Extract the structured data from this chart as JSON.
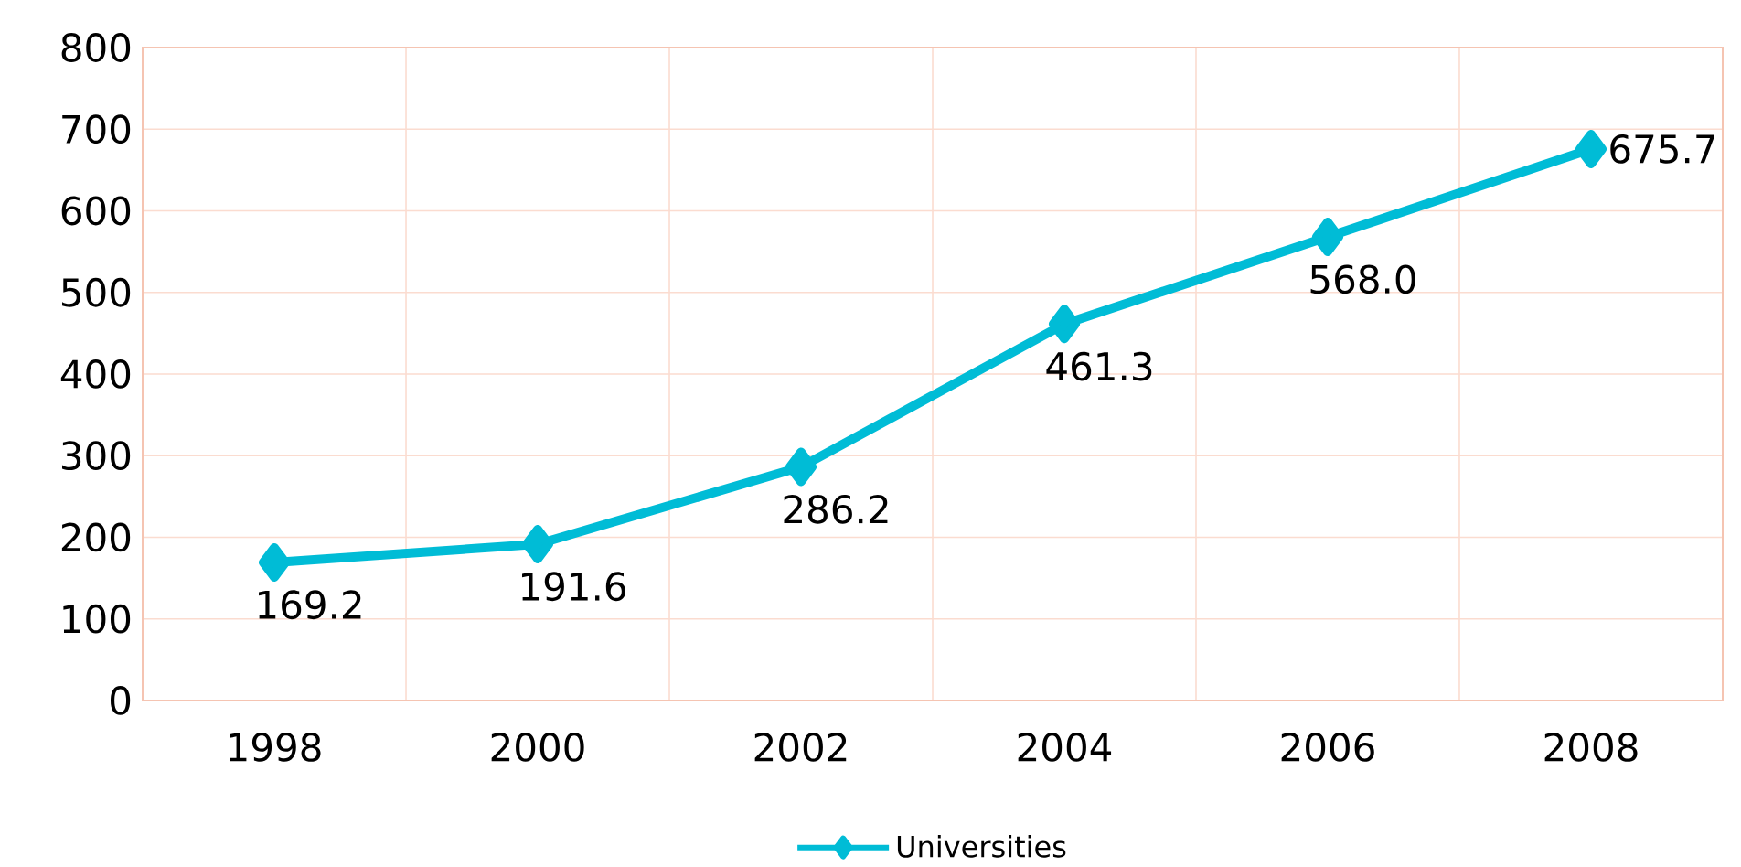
{
  "chart_data": {
    "type": "line",
    "categories": [
      "1998",
      "2000",
      "2002",
      "2004",
      "2006",
      "2008"
    ],
    "series": [
      {
        "name": "Universities",
        "color": "#00bcd6",
        "values": [
          169.2,
          191.6,
          286.2,
          461.3,
          568.0,
          675.7
        ],
        "value_labels": [
          "169.2",
          "191.6",
          "286.2",
          "461.3",
          "568.0",
          "675.7"
        ]
      }
    ],
    "ylim": [
      0,
      800
    ],
    "yticks": [
      0,
      100,
      200,
      300,
      400,
      500,
      600,
      700,
      800
    ],
    "grid": true,
    "legend": "bottom",
    "marker": "diamond",
    "line_style": "solid"
  }
}
